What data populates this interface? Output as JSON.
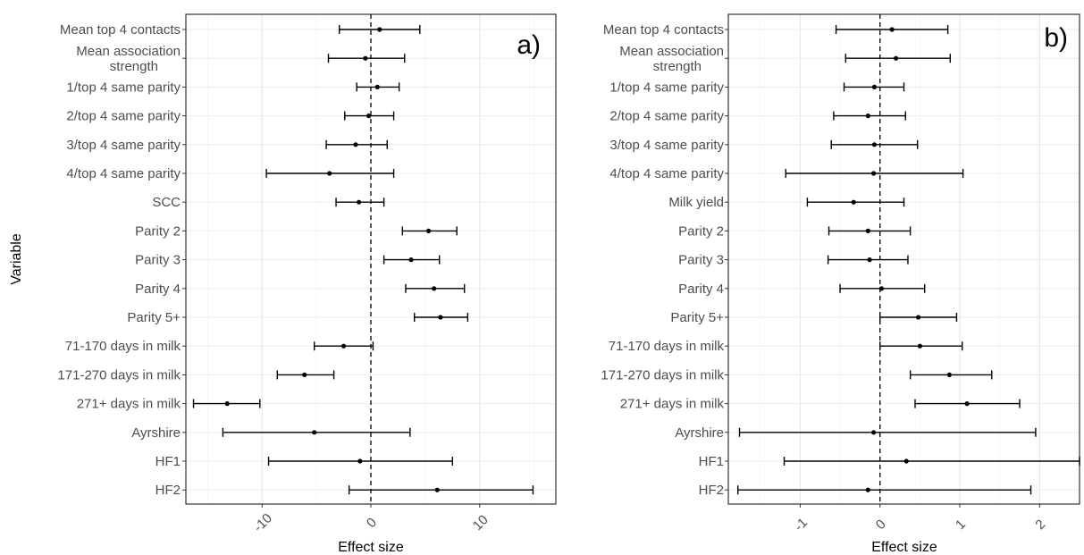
{
  "figure": {
    "shared_ylabel": "Variable"
  },
  "chart_data": [
    {
      "type": "forest",
      "panel_label": "a)",
      "xlabel": "Effect size",
      "ylabel": "Variable",
      "grid": true,
      "xlim": [
        -17,
        17
      ],
      "x_ticks": [
        -10,
        0,
        10
      ],
      "x_tick_labels": [
        "-10",
        "0",
        "10"
      ],
      "reference_line": 0,
      "rows": [
        {
          "label": "Mean top 4 contacts",
          "estimate": 0.8,
          "low": -2.9,
          "high": 4.5
        },
        {
          "label": "Mean association\nstrength",
          "estimate": -0.5,
          "low": -3.9,
          "high": 3.1
        },
        {
          "label": "1/top 4 same parity",
          "estimate": 0.6,
          "low": -1.3,
          "high": 2.6
        },
        {
          "label": "2/top 4 same parity",
          "estimate": -0.2,
          "low": -2.4,
          "high": 2.1
        },
        {
          "label": "3/top 4 same parity",
          "estimate": -1.4,
          "low": -4.1,
          "high": 1.5
        },
        {
          "label": "4/top 4 same parity",
          "estimate": -3.8,
          "low": -9.6,
          "high": 2.1
        },
        {
          "label": "SCC",
          "estimate": -1.1,
          "low": -3.2,
          "high": 1.2
        },
        {
          "label": "Parity 2",
          "estimate": 5.3,
          "low": 2.9,
          "high": 7.9
        },
        {
          "label": "Parity 3",
          "estimate": 3.7,
          "low": 1.2,
          "high": 6.3
        },
        {
          "label": "Parity 4",
          "estimate": 5.8,
          "low": 3.2,
          "high": 8.6
        },
        {
          "label": "Parity 5+",
          "estimate": 6.4,
          "low": 4.0,
          "high": 8.9
        },
        {
          "label": "71-170 days in milk",
          "estimate": -2.5,
          "low": -5.2,
          "high": 0.2
        },
        {
          "label": "171-270 days in milk",
          "estimate": -6.1,
          "low": -8.6,
          "high": -3.4
        },
        {
          "label": "271+ days in milk",
          "estimate": -13.2,
          "low": -16.3,
          "high": -10.2
        },
        {
          "label": "Ayrshire",
          "estimate": -5.2,
          "low": -13.6,
          "high": 3.6
        },
        {
          "label": "HF1",
          "estimate": -1.0,
          "low": -9.4,
          "high": 7.5
        },
        {
          "label": "HF2",
          "estimate": 6.1,
          "low": -2.0,
          "high": 14.9
        }
      ]
    },
    {
      "type": "forest",
      "panel_label": "b)",
      "xlabel": "Effect size",
      "ylabel": "",
      "grid": true,
      "xlim": [
        -1.9,
        2.5
      ],
      "x_ticks": [
        -1,
        0,
        1,
        2
      ],
      "x_tick_labels": [
        "-1",
        "0",
        "1",
        "2"
      ],
      "reference_line": 0,
      "rows": [
        {
          "label": "Mean top 4 contacts",
          "estimate": 0.15,
          "low": -0.55,
          "high": 0.85
        },
        {
          "label": "Mean association\nstrength",
          "estimate": 0.2,
          "low": -0.43,
          "high": 0.88
        },
        {
          "label": "1/top 4 same parity",
          "estimate": -0.07,
          "low": -0.45,
          "high": 0.3
        },
        {
          "label": "2/top 4  same parity",
          "estimate": -0.15,
          "low": -0.58,
          "high": 0.32
        },
        {
          "label": "3/top 4  same parity",
          "estimate": -0.07,
          "low": -0.61,
          "high": 0.47
        },
        {
          "label": "4/top 4  same parity",
          "estimate": -0.08,
          "low": -1.18,
          "high": 1.04
        },
        {
          "label": "Milk yield",
          "estimate": -0.33,
          "low": -0.91,
          "high": 0.3
        },
        {
          "label": "Parity 2",
          "estimate": -0.15,
          "low": -0.64,
          "high": 0.38
        },
        {
          "label": "Parity 3",
          "estimate": -0.13,
          "low": -0.65,
          "high": 0.35
        },
        {
          "label": "Parity 4",
          "estimate": 0.02,
          "low": -0.5,
          "high": 0.56
        },
        {
          "label": "Parity 5+",
          "estimate": 0.48,
          "low": 0.0,
          "high": 0.96
        },
        {
          "label": "71-170 days in milk",
          "estimate": 0.5,
          "low": 0.0,
          "high": 1.03
        },
        {
          "label": "171-270 days in milk",
          "estimate": 0.87,
          "low": 0.38,
          "high": 1.4
        },
        {
          "label": "271+ days in milk",
          "estimate": 1.09,
          "low": 0.44,
          "high": 1.75
        },
        {
          "label": "Ayrshire",
          "estimate": -0.08,
          "low": -1.76,
          "high": 1.95
        },
        {
          "label": "HF1",
          "estimate": 0.33,
          "low": -1.2,
          "high": 2.5
        },
        {
          "label": "HF2",
          "estimate": -0.15,
          "low": -1.78,
          "high": 1.89
        }
      ]
    }
  ]
}
